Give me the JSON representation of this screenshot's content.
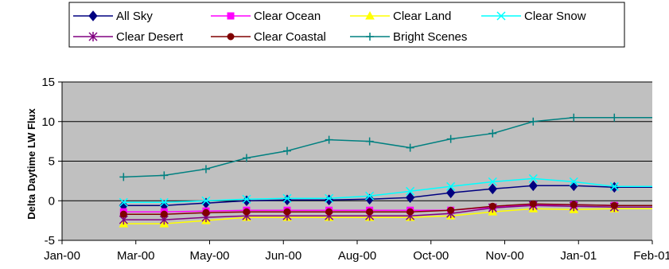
{
  "colors": {
    "plot_background": "#C0C0C0",
    "gridline": "#000000"
  },
  "chart_data": {
    "type": "line",
    "ylabel": "Delta Daytime LW Flux",
    "xlabel": "",
    "ylim": [
      -5,
      15
    ],
    "yticks": [
      -5,
      0,
      5,
      10,
      15
    ],
    "xtick_labels": [
      "Jan-00",
      "Mar-00",
      "May-00",
      "Jun-00",
      "Aug-00",
      "Oct-00",
      "Nov-00",
      "Jan-01",
      "Feb-01"
    ],
    "x_unit": "days",
    "grid": "horizontal",
    "legend_position": "top",
    "x": [
      47,
      78,
      110,
      141,
      172,
      204,
      235,
      266,
      297,
      329,
      360,
      391,
      422
    ],
    "series": [
      {
        "name": "All Sky",
        "color": "#000080",
        "marker": "diamond",
        "values": [
          -0.6,
          -0.6,
          -0.3,
          0.0,
          0.1,
          0.1,
          0.2,
          0.4,
          1.0,
          1.5,
          1.9,
          1.9,
          1.7
        ]
      },
      {
        "name": "Clear Ocean",
        "color": "#FF00FF",
        "marker": "square",
        "values": [
          -1.4,
          -1.4,
          -1.3,
          -1.2,
          -1.2,
          -1.2,
          -1.2,
          -1.2,
          -1.2,
          -0.8,
          -0.5,
          -0.5,
          -0.6
        ]
      },
      {
        "name": "Clear Land",
        "color": "#FFFF00",
        "marker": "triangle",
        "values": [
          -2.9,
          -2.9,
          -2.5,
          -2.1,
          -2.1,
          -2.1,
          -2.1,
          -2.1,
          -1.9,
          -1.4,
          -1.0,
          -1.1,
          -1.0
        ]
      },
      {
        "name": "Clear Snow",
        "color": "#00FFFF",
        "marker": "x",
        "values": [
          -0.2,
          -0.2,
          0.0,
          0.2,
          0.3,
          0.3,
          0.6,
          1.2,
          1.8,
          2.4,
          2.8,
          2.4,
          1.8
        ]
      },
      {
        "name": "Clear Desert",
        "color": "#800080",
        "marker": "star",
        "values": [
          -2.4,
          -2.4,
          -2.1,
          -1.9,
          -1.9,
          -1.9,
          -1.9,
          -1.9,
          -1.6,
          -0.9,
          -0.6,
          -0.7,
          -0.8
        ]
      },
      {
        "name": "Clear Coastal",
        "color": "#800000",
        "marker": "circle",
        "values": [
          -1.7,
          -1.7,
          -1.5,
          -1.4,
          -1.4,
          -1.4,
          -1.4,
          -1.4,
          -1.2,
          -0.7,
          -0.4,
          -0.5,
          -0.6
        ]
      },
      {
        "name": "Bright Scenes",
        "color": "#008080",
        "marker": "plus",
        "values": [
          3.0,
          3.2,
          4.0,
          5.4,
          6.3,
          7.7,
          7.5,
          6.7,
          7.8,
          8.5,
          10.0,
          10.5,
          10.5
        ]
      }
    ]
  }
}
